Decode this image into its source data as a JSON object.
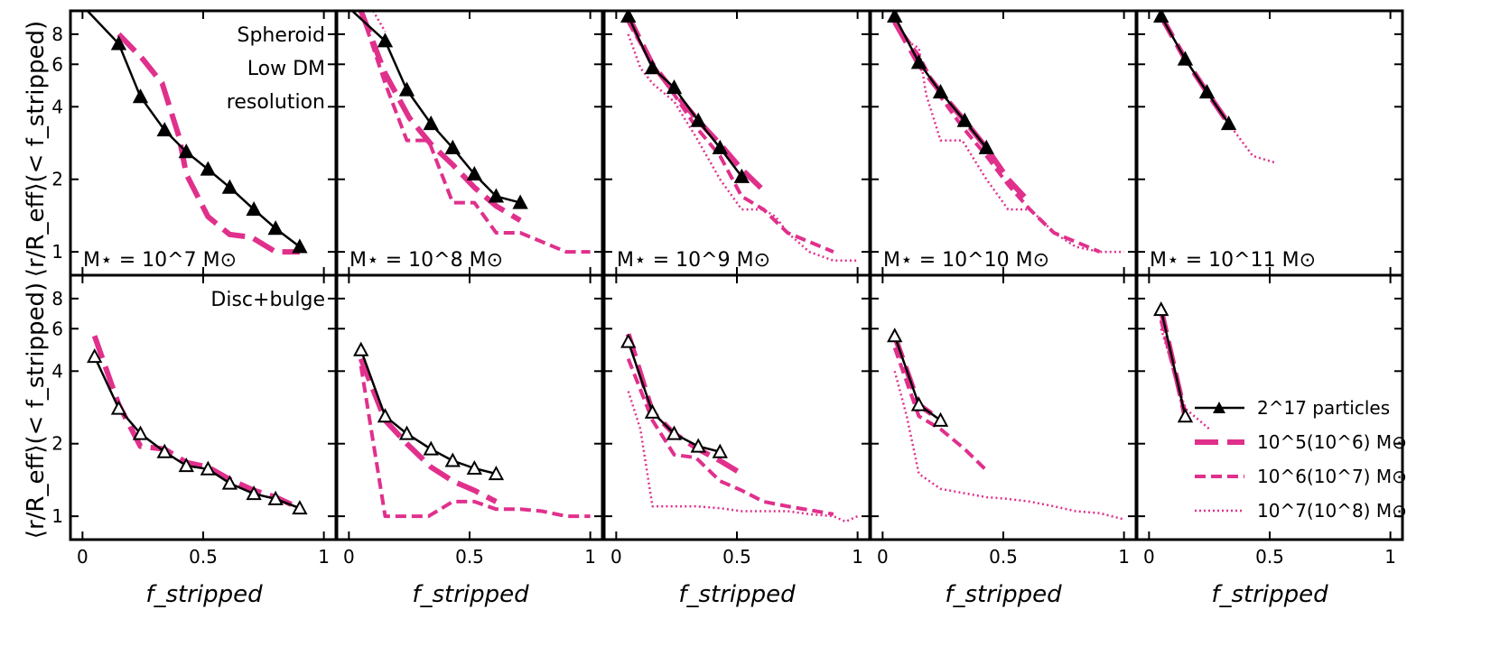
{
  "figure": {
    "ylabel_top": "⟨r/R_eff⟩(< f_stripped)",
    "ylabel_bottom": "⟨r/R_eff⟩(< f_stripped)",
    "xlabel": "f_stripped"
  },
  "colors": {
    "ref": "#000000",
    "pink": "#e0308c"
  },
  "legend": [
    "2^17 particles",
    "10^5(10^6) M⊙",
    "10^6(10^7) M⊙",
    "10^7(10^8) M⊙"
  ],
  "chart_data": {
    "type": "line",
    "xlim": [
      -0.05,
      1.05
    ],
    "ylim": [
      0.8,
      10
    ],
    "yscale": "log",
    "xticks": [
      0,
      0.5,
      1
    ],
    "xticklabels": [
      "0",
      "0.5",
      "1"
    ],
    "yticks": [
      1,
      2,
      4,
      6,
      8
    ],
    "yticklabels": [
      "1",
      "2",
      "4",
      "6",
      "8"
    ],
    "row_labels": [
      [
        "Spheroid",
        "Low DM",
        "resolution"
      ],
      [
        "Disc+bulge"
      ]
    ],
    "mass_labels": [
      "M⋆ = 10^7 M⊙",
      "M⋆ = 10^8 M⊙",
      "M⋆ = 10^9 M⊙",
      "M⋆ = 10^10 M⊙",
      "M⋆ = 10^11 M⊙"
    ],
    "panels": [
      [
        {
          "ref": {
            "x": [
              0.0,
              0.15,
              0.24,
              0.34,
              0.43,
              0.52,
              0.61,
              0.71,
              0.8,
              0.9
            ],
            "y": [
              10.5,
              7.3,
              4.4,
              3.2,
              2.6,
              2.2,
              1.85,
              1.5,
              1.25,
              1.05
            ],
            "filled": true
          },
          "r5": {
            "x": [
              0.15,
              0.25,
              0.33,
              0.4,
              0.43,
              0.52,
              0.61,
              0.7,
              0.8,
              0.9
            ],
            "y": [
              8.0,
              6.3,
              5.0,
              3.0,
              2.1,
              1.4,
              1.18,
              1.15,
              1.0,
              1.0
            ]
          }
        },
        {
          "ref": {
            "x": [
              -0.01,
              0.15,
              0.24,
              0.34,
              0.43,
              0.52,
              0.61,
              0.71
            ],
            "y": [
              10.5,
              7.5,
              4.7,
              3.4,
              2.7,
              2.1,
              1.7,
              1.6
            ],
            "filled": true
          },
          "r5": {
            "x": [
              0.05,
              0.15,
              0.25,
              0.34,
              0.43,
              0.52,
              0.61,
              0.71
            ],
            "y": [
              10.0,
              5.5,
              3.6,
              2.8,
              2.3,
              1.85,
              1.55,
              1.35
            ]
          },
          "r6": {
            "x": [
              0.05,
              0.15,
              0.24,
              0.33,
              0.43,
              0.52,
              0.61,
              0.71,
              0.9,
              1.0
            ],
            "y": [
              10.0,
              5.0,
              2.9,
              2.9,
              1.6,
              1.6,
              1.2,
              1.2,
              1.0,
              1.0
            ]
          },
          "r7": {
            "x": [
              0.1,
              0.15
            ],
            "y": [
              10.0,
              8.2
            ]
          }
        },
        {
          "ref": {
            "x": [
              0.05,
              0.15,
              0.24,
              0.34,
              0.43,
              0.52
            ],
            "y": [
              9.5,
              5.8,
              4.8,
              3.5,
              2.7,
              2.05
            ],
            "filled": true
          },
          "r5": {
            "x": [
              0.05,
              0.15,
              0.24,
              0.34,
              0.43,
              0.52,
              0.61
            ],
            "y": [
              9.5,
              6.0,
              4.6,
              3.5,
              2.8,
              2.2,
              1.8
            ]
          },
          "r6": {
            "x": [
              0.05,
              0.15,
              0.24,
              0.33,
              0.43,
              0.52,
              0.61,
              0.71,
              0.9
            ],
            "y": [
              9.0,
              6.0,
              4.5,
              3.3,
              2.5,
              1.7,
              1.5,
              1.2,
              1.0
            ]
          },
          "r7": {
            "x": [
              0.05,
              0.1,
              0.15,
              0.24,
              0.33,
              0.43,
              0.52,
              0.61,
              0.66,
              0.71,
              0.8,
              0.9,
              1.0
            ],
            "y": [
              8.0,
              5.8,
              5.0,
              4.2,
              3.0,
              2.0,
              1.5,
              1.5,
              1.4,
              1.2,
              1.0,
              0.92,
              0.92
            ]
          }
        },
        {
          "ref": {
            "x": [
              0.05,
              0.15,
              0.24,
              0.34,
              0.43
            ],
            "y": [
              9.5,
              6.1,
              4.6,
              3.5,
              2.7
            ],
            "filled": true
          },
          "r5": {
            "x": [
              0.05,
              0.15,
              0.24,
              0.34,
              0.43,
              0.52,
              0.61
            ],
            "y": [
              9.0,
              6.0,
              4.6,
              3.5,
              2.7,
              2.0,
              1.6
            ]
          },
          "r6": {
            "x": [
              0.05,
              0.15,
              0.24,
              0.33,
              0.43,
              0.52,
              0.61,
              0.71,
              0.9
            ],
            "y": [
              9.0,
              6.5,
              4.4,
              3.3,
              2.5,
              1.9,
              1.5,
              1.2,
              1.0
            ]
          },
          "r7": {
            "x": [
              0.05,
              0.1,
              0.15,
              0.18,
              0.24,
              0.33,
              0.43,
              0.52,
              0.61,
              0.66,
              0.71,
              0.8,
              0.9,
              1.0
            ],
            "y": [
              9.0,
              7.5,
              7.0,
              4.5,
              2.9,
              2.9,
              2.0,
              1.5,
              1.5,
              1.35,
              1.2,
              1.05,
              1.0,
              1.0
            ]
          }
        },
        {
          "ref": {
            "x": [
              0.05,
              0.15,
              0.24,
              0.33
            ],
            "y": [
              9.5,
              6.3,
              4.6,
              3.4
            ],
            "filled": true
          },
          "r5": {
            "x": [
              0.05,
              0.15,
              0.24,
              0.33
            ],
            "y": [
              9.5,
              6.3,
              4.6,
              3.4
            ]
          },
          "r7": {
            "x": [
              0.05,
              0.15,
              0.24,
              0.33,
              0.43,
              0.52
            ],
            "y": [
              9.5,
              6.3,
              4.6,
              3.4,
              2.5,
              2.35
            ]
          }
        }
      ],
      [
        {
          "ref": {
            "x": [
              0.05,
              0.15,
              0.24,
              0.34,
              0.43,
              0.52,
              0.61,
              0.71,
              0.8,
              0.9
            ],
            "y": [
              4.6,
              2.8,
              2.2,
              1.85,
              1.62,
              1.57,
              1.37,
              1.24,
              1.18,
              1.08
            ],
            "filled": false
          },
          "r5": {
            "x": [
              0.05,
              0.15,
              0.24,
              0.34,
              0.43,
              0.52,
              0.61,
              0.71,
              0.8,
              0.9
            ],
            "y": [
              5.6,
              2.9,
              1.95,
              1.9,
              1.67,
              1.6,
              1.42,
              1.28,
              1.2,
              1.08
            ]
          }
        },
        {
          "ref": {
            "x": [
              0.05,
              0.15,
              0.24,
              0.34,
              0.43,
              0.52,
              0.61
            ],
            "y": [
              4.9,
              2.6,
              2.2,
              1.9,
              1.7,
              1.58,
              1.5
            ],
            "filled": false
          },
          "r5": {
            "x": [
              0.05,
              0.15,
              0.24,
              0.34,
              0.43,
              0.52,
              0.61
            ],
            "y": [
              4.5,
              2.5,
              2.0,
              1.6,
              1.4,
              1.28,
              1.15
            ]
          },
          "r6": {
            "x": [
              0.05,
              0.15,
              0.24,
              0.33,
              0.43,
              0.52,
              0.61,
              0.66,
              0.71,
              0.8,
              0.9,
              1.0
            ],
            "y": [
              4.2,
              1.0,
              1.0,
              1.0,
              1.15,
              1.15,
              1.07,
              1.07,
              1.07,
              1.05,
              1.0,
              1.0
            ]
          }
        },
        {
          "ref": {
            "x": [
              0.05,
              0.15,
              0.24,
              0.34,
              0.43
            ],
            "y": [
              5.3,
              2.7,
              2.2,
              1.95,
              1.85
            ],
            "filled": false
          },
          "r5": {
            "x": [
              0.05,
              0.15,
              0.24,
              0.34,
              0.43,
              0.52
            ],
            "y": [
              5.7,
              2.7,
              2.2,
              1.9,
              1.7,
              1.5
            ]
          },
          "r6": {
            "x": [
              0.05,
              0.15,
              0.24,
              0.33,
              0.43,
              0.52,
              0.61,
              0.71,
              0.9
            ],
            "y": [
              4.5,
              2.5,
              1.8,
              1.75,
              1.4,
              1.28,
              1.15,
              1.1,
              1.02
            ]
          },
          "r7": {
            "x": [
              0.05,
              0.1,
              0.15,
              0.24,
              0.33,
              0.43,
              0.52,
              0.61,
              0.71,
              0.8,
              0.9,
              0.95,
              1.0
            ],
            "y": [
              3.3,
              2.3,
              1.1,
              1.1,
              1.1,
              1.08,
              1.05,
              1.05,
              1.05,
              1.02,
              1.0,
              0.95,
              1.0
            ]
          }
        },
        {
          "ref": {
            "x": [
              0.05,
              0.15,
              0.24
            ],
            "y": [
              5.6,
              2.9,
              2.5
            ],
            "filled": false
          },
          "r5": {
            "x": [
              0.05,
              0.15,
              0.24
            ],
            "y": [
              5.6,
              2.9,
              2.5
            ]
          },
          "r6": {
            "x": [
              0.05,
              0.15,
              0.24,
              0.34,
              0.43
            ],
            "y": [
              5.0,
              2.6,
              2.3,
              1.9,
              1.55
            ]
          },
          "r7": {
            "x": [
              0.05,
              0.1,
              0.15,
              0.24,
              0.33,
              0.43,
              0.52,
              0.61,
              0.71,
              0.8,
              0.9,
              1.0
            ],
            "y": [
              4.0,
              2.6,
              1.5,
              1.3,
              1.25,
              1.2,
              1.18,
              1.15,
              1.1,
              1.05,
              1.03,
              0.97
            ]
          }
        },
        {
          "ref": {
            "x": [
              0.05,
              0.15
            ],
            "y": [
              7.2,
              2.6
            ],
            "filled": false
          },
          "r5": {
            "x": [
              0.05,
              0.15
            ],
            "y": [
              7.2,
              2.6
            ]
          },
          "r6": {
            "x": [
              0.05,
              0.15
            ],
            "y": [
              6.5,
              2.6
            ]
          },
          "r7": {
            "x": [
              0.05,
              0.15,
              0.25
            ],
            "y": [
              6.0,
              2.8,
              2.3
            ]
          }
        }
      ]
    ]
  }
}
